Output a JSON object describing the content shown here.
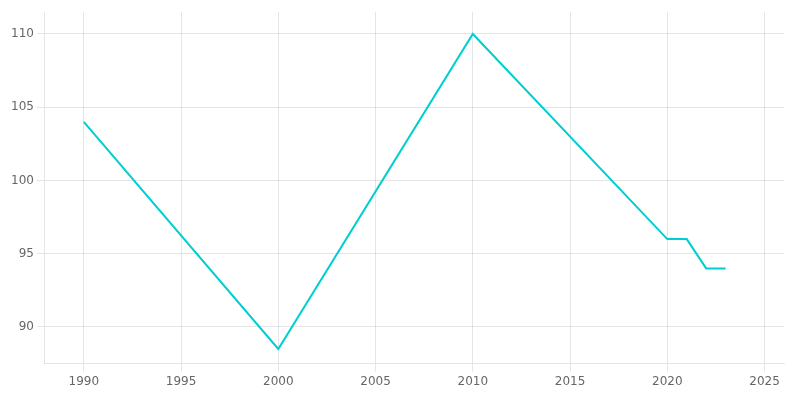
{
  "chart_data": {
    "type": "line",
    "x": [
      1990,
      2000,
      2010,
      2020,
      2021,
      2022,
      2023
    ],
    "values": [
      104,
      88.5,
      110,
      96,
      96,
      94,
      94
    ],
    "color": "#00CED1",
    "xlim": [
      1988,
      2026
    ],
    "xticks": [
      1990,
      1995,
      2000,
      2005,
      2010,
      2015,
      2020,
      2025
    ],
    "ylim": [
      87.5,
      111.5
    ],
    "yticks": [
      90,
      95,
      100,
      105,
      110
    ],
    "grid": true
  }
}
